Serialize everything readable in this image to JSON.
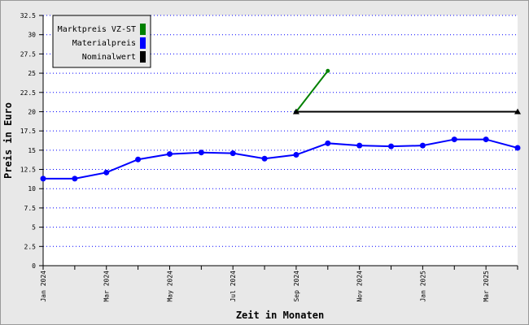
{
  "chart_data": {
    "type": "line",
    "x_label": "Zeit in Monaten",
    "y_label": "Preis in Euro",
    "categories": [
      "Jan 2024",
      null,
      "Mar 2024",
      null,
      "May 2024",
      null,
      "Jul 2024",
      null,
      "Sep 2024",
      null,
      "Nov 2024",
      null,
      "Jan 2025",
      null,
      "Mar 2025",
      null
    ],
    "series": [
      {
        "name": "Marktpreis VZ-ST",
        "color": "#008000",
        "values": [
          null,
          null,
          null,
          null,
          null,
          null,
          null,
          null,
          20,
          25.3,
          null,
          null,
          null,
          null,
          null,
          null
        ]
      },
      {
        "name": "Materialpreis",
        "color": "#0000ff",
        "values": [
          11.3,
          11.3,
          12.1,
          13.8,
          14.5,
          14.7,
          14.6,
          13.9,
          14.4,
          15.9,
          15.6,
          15.5,
          15.6,
          16.4,
          16.4,
          15.3
        ]
      },
      {
        "name": "Nominalwert",
        "color": "#000000",
        "values": [
          null,
          null,
          null,
          null,
          null,
          null,
          null,
          null,
          20,
          20,
          20,
          20,
          20,
          20,
          20,
          20
        ]
      }
    ],
    "ylim": [
      0,
      32.5
    ],
    "yticks": [
      0,
      2.5,
      5,
      7.5,
      10,
      12.5,
      15,
      17.5,
      20,
      22.5,
      25,
      27.5,
      30,
      32.5
    ],
    "grid": true
  }
}
